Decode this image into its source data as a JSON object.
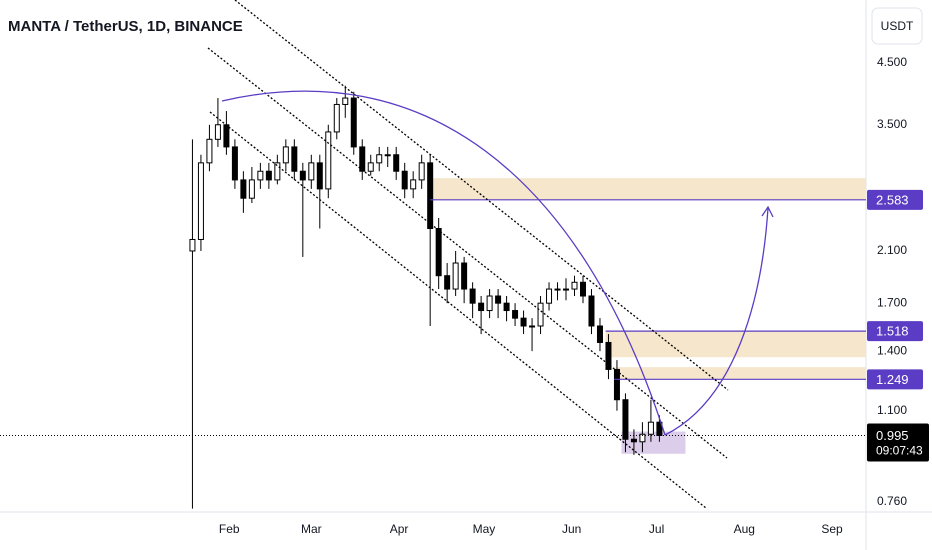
{
  "chart_data": {
    "type": "candlestick",
    "title": "MANTA / TetherUS, 1D, BINANCE",
    "currency_button": "USDT",
    "log_scale": true,
    "grid": false,
    "xlim": [
      -49,
      257
    ],
    "ylim": [
      0.73,
      5.8
    ],
    "xticks": [
      {
        "value": 32,
        "label": "Feb"
      },
      {
        "value": 61,
        "label": "Mar"
      },
      {
        "value": 92,
        "label": "Apr"
      },
      {
        "value": 122,
        "label": "May"
      },
      {
        "value": 153,
        "label": "Jun"
      },
      {
        "value": 183,
        "label": "Jul"
      },
      {
        "value": 214,
        "label": "Aug"
      },
      {
        "value": 245,
        "label": "Sep"
      }
    ],
    "yticks": [
      {
        "value": 4.5,
        "label": "4.500"
      },
      {
        "value": 3.5,
        "label": "3.500"
      },
      {
        "value": 2.1,
        "label": "2.100"
      },
      {
        "value": 1.7,
        "label": "1.700"
      },
      {
        "value": 1.4,
        "label": "1.400"
      },
      {
        "value": 1.1,
        "label": "1.100"
      },
      {
        "value": 0.76,
        "label": "0.760"
      }
    ],
    "up_color": "#ffffff",
    "down_color": "#000000",
    "candles": {
      "x": [
        19,
        22,
        25,
        28,
        31,
        34,
        37,
        40,
        43,
        46,
        49,
        52,
        55,
        58,
        61,
        64,
        67,
        70,
        73,
        76,
        79,
        82,
        85,
        88,
        91,
        94,
        97,
        100,
        103,
        106,
        109,
        112,
        115,
        118,
        121,
        124,
        127,
        130,
        133,
        136,
        139,
        142,
        145,
        148,
        151,
        154,
        157,
        160,
        163,
        166,
        169,
        172,
        175,
        178,
        181,
        184
      ],
      "open": [
        2.1,
        2.2,
        3.0,
        3.3,
        3.5,
        3.2,
        2.8,
        2.6,
        2.8,
        2.9,
        2.8,
        3.0,
        3.2,
        2.9,
        2.8,
        3.0,
        2.7,
        3.4,
        3.8,
        3.9,
        3.2,
        2.9,
        3.0,
        3.1,
        3.1,
        2.9,
        2.7,
        2.8,
        3.0,
        2.3,
        1.9,
        1.8,
        2.0,
        1.8,
        1.7,
        1.65,
        1.75,
        1.7,
        1.65,
        1.6,
        1.55,
        1.55,
        1.7,
        1.8,
        1.8,
        1.8,
        1.85,
        1.75,
        1.55,
        1.45,
        1.3,
        1.15,
        0.98,
        0.97,
        1.0,
        1.05
      ],
      "high": [
        3.3,
        3.1,
        3.5,
        3.9,
        3.7,
        3.3,
        2.9,
        2.95,
        3.0,
        3.0,
        3.1,
        3.3,
        3.3,
        3.0,
        3.1,
        3.1,
        3.5,
        3.9,
        4.1,
        4.0,
        3.3,
        3.1,
        3.2,
        3.2,
        3.2,
        3.0,
        2.9,
        3.1,
        3.1,
        2.4,
        2.0,
        2.1,
        2.05,
        1.85,
        1.75,
        1.8,
        1.8,
        1.75,
        1.7,
        1.65,
        1.6,
        1.75,
        1.85,
        1.85,
        1.88,
        1.9,
        1.9,
        1.8,
        1.6,
        1.5,
        1.35,
        1.18,
        1.02,
        1.05,
        1.15,
        1.08
      ],
      "low": [
        0.74,
        2.1,
        2.9,
        3.2,
        3.1,
        2.7,
        2.45,
        2.55,
        2.7,
        2.7,
        2.75,
        2.9,
        2.8,
        2.05,
        2.7,
        2.3,
        2.6,
        3.3,
        3.6,
        3.1,
        2.8,
        2.85,
        2.9,
        2.95,
        2.8,
        2.6,
        2.6,
        2.7,
        1.55,
        1.8,
        1.7,
        1.75,
        1.7,
        1.6,
        1.5,
        1.6,
        1.6,
        1.58,
        1.55,
        1.5,
        1.4,
        1.5,
        1.65,
        1.72,
        1.72,
        1.75,
        1.7,
        1.5,
        1.4,
        1.25,
        1.1,
        0.93,
        0.92,
        0.93,
        0.97,
        0.97
      ],
      "close": [
        2.2,
        3.0,
        3.3,
        3.5,
        3.2,
        2.8,
        2.6,
        2.8,
        2.9,
        2.8,
        3.0,
        3.2,
        2.9,
        2.8,
        3.0,
        2.7,
        3.4,
        3.8,
        3.9,
        3.2,
        2.9,
        3.0,
        3.1,
        3.1,
        2.9,
        2.7,
        2.8,
        3.0,
        2.3,
        1.9,
        1.8,
        2.0,
        1.8,
        1.7,
        1.65,
        1.75,
        1.7,
        1.65,
        1.6,
        1.55,
        1.55,
        1.7,
        1.8,
        1.8,
        1.8,
        1.85,
        1.75,
        1.55,
        1.45,
        1.3,
        1.15,
        0.98,
        0.97,
        1.0,
        1.05,
        0.995
      ]
    },
    "zones": [
      {
        "low": 2.583,
        "high": 2.82,
        "from": 103,
        "color": "#f5e6cc"
      },
      {
        "low": 1.366,
        "high": 1.518,
        "from": 165,
        "color": "#f5e6cc"
      },
      {
        "low": 1.249,
        "high": 1.312,
        "from": 168,
        "color": "#f5e6cc"
      },
      {
        "low": 0.924,
        "high": 1.011,
        "from": 170.6,
        "to": 193.2,
        "color": "#dccdea"
      }
    ],
    "price_lines": [
      {
        "value": 2.583,
        "from": 103,
        "color": "#5b3cc4"
      },
      {
        "value": 1.518,
        "from": 165,
        "color": "#5b3cc4"
      },
      {
        "value": 1.249,
        "from": 168,
        "color": "#5b3cc4"
      }
    ],
    "last_price": {
      "value": 0.995,
      "countdown": "09:07:43",
      "color": "#000000"
    }
  }
}
